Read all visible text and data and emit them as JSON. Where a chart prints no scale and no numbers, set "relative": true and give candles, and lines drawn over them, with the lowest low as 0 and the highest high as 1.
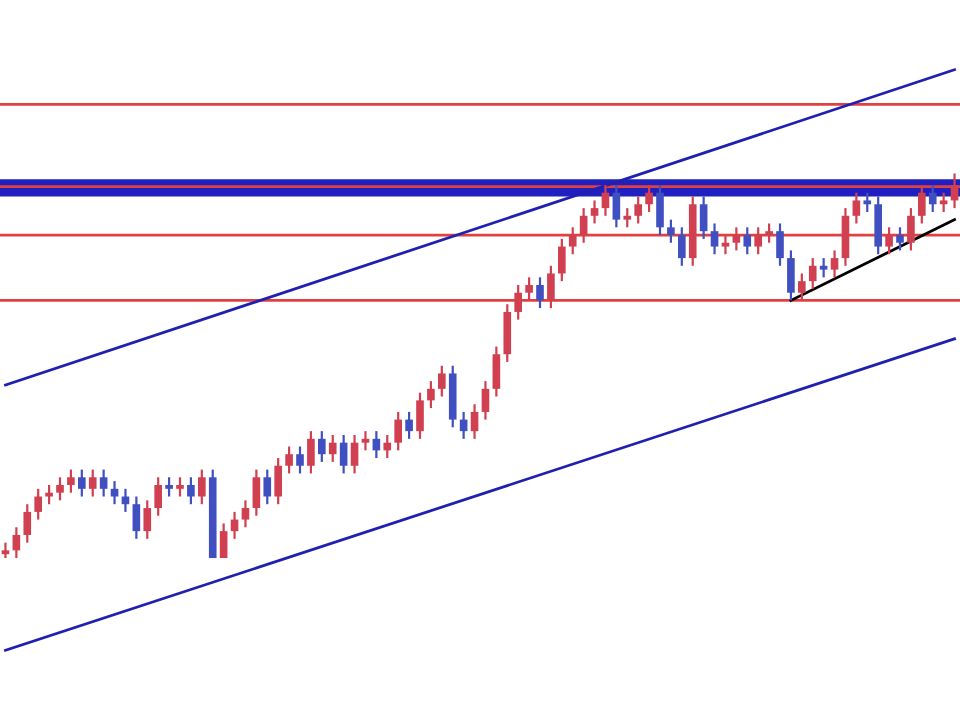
{
  "chart_data": {
    "type": "candlestick",
    "relative": true,
    "categories": [
      null,
      null,
      null,
      null,
      null,
      null,
      null,
      null,
      null,
      null,
      null,
      null,
      null,
      null,
      null,
      null,
      null,
      null,
      null,
      null,
      null,
      null,
      null,
      null,
      null,
      null,
      null,
      null,
      null,
      null,
      null,
      null,
      null,
      null,
      null,
      null,
      null,
      null,
      null,
      null,
      null,
      null,
      null,
      null,
      null,
      null,
      null,
      null,
      null,
      null,
      null,
      null,
      null,
      null,
      null,
      null,
      null,
      null,
      null,
      null,
      null,
      null,
      null,
      null,
      null,
      null,
      null,
      null,
      null,
      null,
      null,
      null,
      null,
      null,
      null,
      null,
      null,
      null,
      null,
      null,
      null,
      null,
      null,
      null,
      null,
      null,
      null,
      null
    ],
    "series": [
      {
        "colors": [
          "#d04050",
          "#d04050",
          "#d04050",
          "#d04050",
          "#d04050",
          "#d04050",
          "#d04050",
          "#4050c0",
          "#d04050",
          "#4050c0",
          "#4050c0",
          "#4050c0",
          "#4050c0",
          "#d04050",
          "#d04050",
          "#4050c0",
          "#d04050",
          "#4050c0",
          "#d04050",
          "#4050c0",
          "#d04050",
          "#d04050",
          "#d04050",
          "#d04050",
          "#4050c0",
          "#d04050",
          "#d04050",
          "#4050c0",
          "#d04050",
          "#4050c0",
          "#d04050",
          "#4050c0",
          "#d04050",
          "#d04050",
          "#4050c0",
          "#d04050",
          "#d04050",
          "#4050c0",
          "#d04050",
          "#d04050",
          "#d04050",
          "#4050c0",
          "#4050c0",
          "#d04050",
          "#d04050",
          "#d04050",
          "#d04050",
          "#d04050",
          "#d04050",
          "#4050c0",
          "#d04050",
          "#d04050",
          "#d04050",
          "#d04050",
          "#d04050",
          "#d04050",
          "#4050c0",
          "#d04050",
          "#d04050",
          "#d04050",
          "#4050c0",
          "#4050c0",
          "#4050c0",
          "#d04050",
          "#4050c0",
          "#4050c0",
          "#d04050",
          "#d04050",
          "#4050c0",
          "#d04050",
          "#d04050",
          "#4050c0",
          "#4050c0",
          "#d04050",
          "#d04050",
          "#4050c0",
          "#d04050",
          "#d04050",
          "#d04050",
          "#4050c0",
          "#4050c0",
          "#d04050",
          "#4050c0",
          "#d04050",
          "#d04050",
          "#4050c0",
          "#d04050",
          "#d04050"
        ],
        "ohlc": [
          [
            0.01,
            0.04,
            0,
            0.02
          ],
          [
            0.02,
            0.08,
            0,
            0.06
          ],
          [
            0.06,
            0.14,
            0.04,
            0.12
          ],
          [
            0.12,
            0.18,
            0.1,
            0.16
          ],
          [
            0.16,
            0.19,
            0.14,
            0.17
          ],
          [
            0.17,
            0.21,
            0.15,
            0.19
          ],
          [
            0.19,
            0.23,
            0.17,
            0.21
          ],
          [
            0.21,
            0.23,
            0.16,
            0.18
          ],
          [
            0.18,
            0.23,
            0.16,
            0.21
          ],
          [
            0.21,
            0.23,
            0.16,
            0.18
          ],
          [
            0.18,
            0.2,
            0.14,
            0.16
          ],
          [
            0.16,
            0.18,
            0.12,
            0.14
          ],
          [
            0.14,
            0.16,
            0.05,
            0.07
          ],
          [
            0.07,
            0.15,
            0.05,
            0.13
          ],
          [
            0.13,
            0.21,
            0.11,
            0.19
          ],
          [
            0.19,
            0.21,
            0.16,
            0.18
          ],
          [
            0.18,
            0.21,
            0.16,
            0.19
          ],
          [
            0.19,
            0.21,
            0.14,
            0.16
          ],
          [
            0.16,
            0.23,
            0.14,
            0.21
          ],
          [
            0.21,
            0.23,
            0,
            0
          ],
          [
            0,
            0.09,
            0,
            0.07
          ],
          [
            0.07,
            0.12,
            0.05,
            0.1
          ],
          [
            0.1,
            0.15,
            0.08,
            0.13
          ],
          [
            0.13,
            0.23,
            0.11,
            0.21
          ],
          [
            0.21,
            0.23,
            0.14,
            0.16
          ],
          [
            0.16,
            0.26,
            0.14,
            0.24
          ],
          [
            0.24,
            0.29,
            0.22,
            0.27
          ],
          [
            0.27,
            0.29,
            0.22,
            0.24
          ],
          [
            0.24,
            0.33,
            0.22,
            0.31
          ],
          [
            0.31,
            0.33,
            0.25,
            0.27
          ],
          [
            0.27,
            0.32,
            0.25,
            0.3
          ],
          [
            0.3,
            0.32,
            0.22,
            0.24
          ],
          [
            0.24,
            0.32,
            0.22,
            0.3
          ],
          [
            0.3,
            0.33,
            0.28,
            0.31
          ],
          [
            0.31,
            0.33,
            0.26,
            0.28
          ],
          [
            0.28,
            0.32,
            0.26,
            0.3
          ],
          [
            0.3,
            0.38,
            0.28,
            0.36
          ],
          [
            0.36,
            0.38,
            0.31,
            0.33
          ],
          [
            0.33,
            0.43,
            0.31,
            0.41
          ],
          [
            0.41,
            0.46,
            0.39,
            0.44
          ],
          [
            0.44,
            0.5,
            0.42,
            0.48
          ],
          [
            0.48,
            0.5,
            0.34,
            0.36
          ],
          [
            0.36,
            0.38,
            0.31,
            0.33
          ],
          [
            0.33,
            0.4,
            0.31,
            0.38
          ],
          [
            0.38,
            0.46,
            0.36,
            0.44
          ],
          [
            0.44,
            0.55,
            0.42,
            0.53
          ],
          [
            0.53,
            0.66,
            0.51,
            0.64
          ],
          [
            0.64,
            0.71,
            0.62,
            0.69
          ],
          [
            0.69,
            0.73,
            0.67,
            0.71
          ],
          [
            0.71,
            0.73,
            0.65,
            0.67
          ],
          [
            0.67,
            0.76,
            0.65,
            0.74
          ],
          [
            0.74,
            0.83,
            0.72,
            0.81
          ],
          [
            0.81,
            0.86,
            0.79,
            0.84
          ],
          [
            0.84,
            0.91,
            0.82,
            0.89
          ],
          [
            0.89,
            0.93,
            0.87,
            0.91
          ],
          [
            0.91,
            0.97,
            0.89,
            0.95
          ],
          [
            0.95,
            0.97,
            0.86,
            0.88
          ],
          [
            0.88,
            0.91,
            0.86,
            0.89
          ],
          [
            0.89,
            0.94,
            0.87,
            0.92
          ],
          [
            0.92,
            0.97,
            0.9,
            0.95
          ],
          [
            0.95,
            0.97,
            0.84,
            0.86
          ],
          [
            0.86,
            0.88,
            0.82,
            0.84
          ],
          [
            0.84,
            0.86,
            0.76,
            0.78
          ],
          [
            0.78,
            0.94,
            0.76,
            0.92
          ],
          [
            0.92,
            0.94,
            0.83,
            0.85
          ],
          [
            0.85,
            0.87,
            0.79,
            0.81
          ],
          [
            0.81,
            0.84,
            0.79,
            0.82
          ],
          [
            0.82,
            0.86,
            0.8,
            0.84
          ],
          [
            0.84,
            0.86,
            0.79,
            0.81
          ],
          [
            0.81,
            0.86,
            0.79,
            0.84
          ],
          [
            0.84,
            0.87,
            0.82,
            0.85
          ],
          [
            0.85,
            0.87,
            0.76,
            0.78
          ],
          [
            0.78,
            0.8,
            0.67,
            0.69
          ],
          [
            0.69,
            0.74,
            0.67,
            0.72
          ],
          [
            0.72,
            0.78,
            0.7,
            0.76
          ],
          [
            0.76,
            0.78,
            0.73,
            0.75
          ],
          [
            0.75,
            0.8,
            0.73,
            0.78
          ],
          [
            0.78,
            0.91,
            0.76,
            0.89
          ],
          [
            0.89,
            0.95,
            0.87,
            0.93
          ],
          [
            0.93,
            0.95,
            0.9,
            0.92
          ],
          [
            0.92,
            0.94,
            0.79,
            0.81
          ],
          [
            0.81,
            0.86,
            0.79,
            0.84
          ],
          [
            0.84,
            0.86,
            0.8,
            0.82
          ],
          [
            0.82,
            0.91,
            0.8,
            0.89
          ],
          [
            0.89,
            0.97,
            0.87,
            0.95
          ],
          [
            0.95,
            0.97,
            0.9,
            0.92
          ],
          [
            0.92,
            0.95,
            0.9,
            0.93
          ],
          [
            0.93,
            1,
            0.91,
            0.97
          ]
        ]
      },
      {
        "type": "line",
        "color": "#2020b0",
        "values": [
          0.45,
          null,
          null,
          null,
          null,
          null,
          null,
          null,
          null,
          null,
          null,
          null,
          null,
          null,
          null,
          null,
          null,
          null,
          null,
          null,
          null,
          null,
          null,
          null,
          null,
          null,
          null,
          null,
          null,
          null,
          null,
          null,
          null,
          null,
          null,
          null,
          null,
          null,
          null,
          null,
          null,
          null,
          null,
          null,
          null,
          null,
          null,
          null,
          null,
          null,
          null,
          null,
          null,
          null,
          null,
          null,
          null,
          null,
          null,
          null,
          null,
          null,
          null,
          null,
          null,
          null,
          null,
          null,
          null,
          null,
          null,
          null,
          null,
          null,
          null,
          null,
          null,
          null,
          null,
          null,
          null,
          null,
          null,
          null,
          null,
          null,
          null,
          1.27
        ]
      },
      {
        "type": "line",
        "color": "#2020b0",
        "values": [
          -0.24,
          null,
          null,
          null,
          null,
          null,
          null,
          null,
          null,
          null,
          null,
          null,
          null,
          null,
          null,
          null,
          null,
          null,
          null,
          null,
          null,
          null,
          null,
          null,
          null,
          null,
          null,
          null,
          null,
          null,
          null,
          null,
          null,
          null,
          null,
          null,
          null,
          null,
          null,
          null,
          null,
          null,
          null,
          null,
          null,
          null,
          null,
          null,
          null,
          null,
          null,
          null,
          null,
          null,
          null,
          null,
          null,
          null,
          null,
          null,
          null,
          null,
          null,
          null,
          null,
          null,
          null,
          null,
          null,
          null,
          null,
          null,
          null,
          null,
          null,
          null,
          null,
          null,
          null,
          null,
          null,
          null,
          null,
          null,
          null,
          null,
          null,
          0.57
        ]
      },
      {
        "type": "line",
        "color": "#000000",
        "values": [
          null,
          null,
          null,
          null,
          null,
          null,
          null,
          null,
          null,
          null,
          null,
          null,
          null,
          null,
          null,
          null,
          null,
          null,
          null,
          null,
          null,
          null,
          null,
          null,
          null,
          null,
          null,
          null,
          null,
          null,
          null,
          null,
          null,
          null,
          null,
          null,
          null,
          null,
          null,
          null,
          null,
          null,
          null,
          null,
          null,
          null,
          null,
          null,
          null,
          null,
          null,
          null,
          null,
          null,
          null,
          null,
          null,
          null,
          null,
          null,
          null,
          null,
          null,
          null,
          null,
          null,
          null,
          null,
          null,
          null,
          null,
          null,
          0.67,
          null,
          null,
          null,
          null,
          null,
          null,
          null,
          null,
          null,
          null,
          null,
          null,
          null,
          null,
          0.88
        ]
      }
    ],
    "ref_lines": [
      {
        "axis": "y",
        "value": 1.18,
        "color": "#e04040"
      },
      {
        "axis": "y",
        "value": 0.966,
        "color": "#e04040"
      },
      {
        "axis": "y",
        "value": 0.84,
        "color": "#e04040"
      },
      {
        "axis": "y",
        "value": 0.67,
        "color": "#e04040"
      }
    ],
    "bands": [
      {
        "axis": "y",
        "from": 0.94,
        "to": 0.985,
        "color": "#2020c0"
      }
    ]
  }
}
